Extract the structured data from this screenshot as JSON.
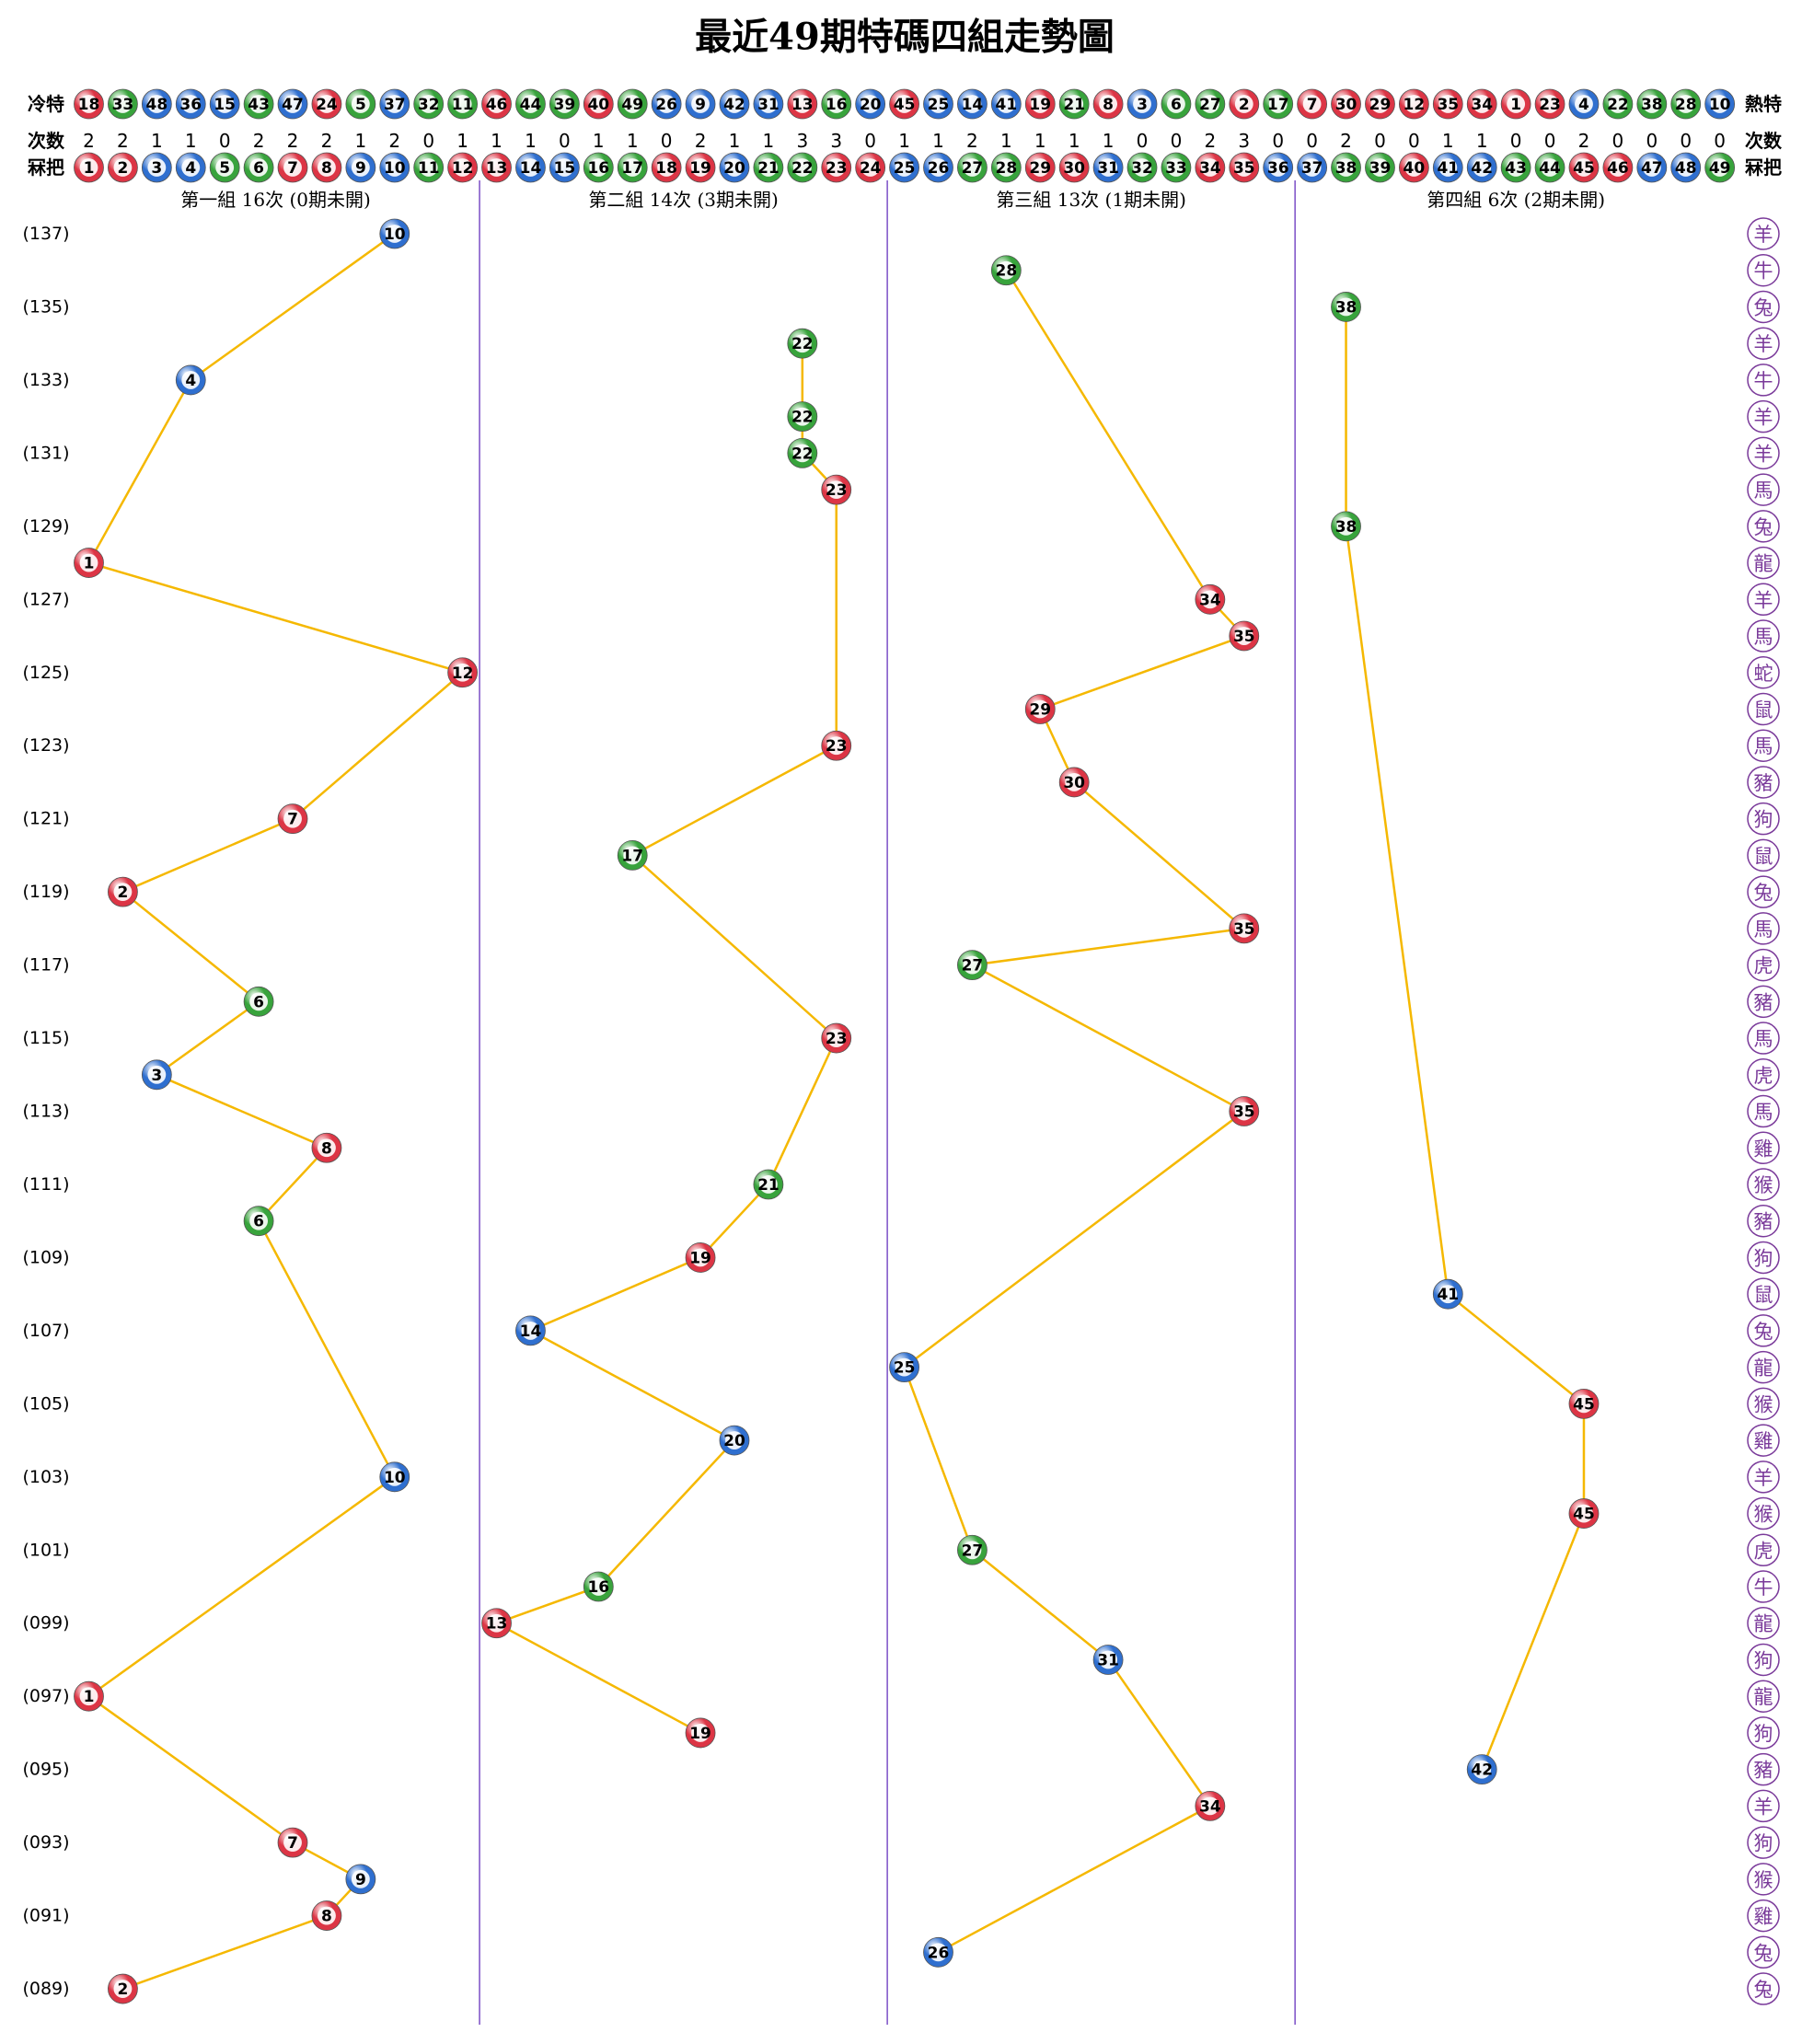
{
  "chart_data": {
    "type": "trend",
    "title": "最近49期特碼四組走勢圖",
    "row_labels_left": [
      "冷特",
      "次数",
      "冧把"
    ],
    "row_labels_right": [
      "熱特",
      "次数",
      "冧把"
    ],
    "cold": [
      18,
      33,
      48,
      36,
      15,
      43,
      47,
      24,
      5,
      37,
      32,
      11,
      46,
      44,
      39,
      40,
      49,
      26,
      9,
      42,
      31,
      13,
      16,
      20,
      45,
      25,
      14,
      41,
      19,
      21,
      8,
      3,
      6,
      27,
      2,
      17,
      7,
      30,
      29,
      12,
      35,
      34,
      1,
      23,
      4,
      22,
      38,
      28,
      10
    ],
    "counts": [
      2,
      2,
      1,
      1,
      0,
      2,
      2,
      2,
      1,
      2,
      0,
      1,
      1,
      1,
      0,
      1,
      1,
      0,
      2,
      1,
      1,
      3,
      3,
      0,
      1,
      1,
      2,
      1,
      1,
      1,
      1,
      0,
      0,
      2,
      3,
      0,
      0,
      2,
      0,
      0,
      1,
      1,
      0,
      0,
      2,
      0,
      0,
      0,
      0
    ],
    "numbers": [
      1,
      2,
      3,
      4,
      5,
      6,
      7,
      8,
      9,
      10,
      11,
      12,
      13,
      14,
      15,
      16,
      17,
      18,
      19,
      20,
      21,
      22,
      23,
      24,
      25,
      26,
      27,
      28,
      29,
      30,
      31,
      32,
      33,
      34,
      35,
      36,
      37,
      38,
      39,
      40,
      41,
      42,
      43,
      44,
      45,
      46,
      47,
      48,
      49
    ],
    "groups": [
      {
        "title": "第一組 16次 (0期未開)",
        "range": [
          1,
          12
        ]
      },
      {
        "title": "第二組 14次 (3期未開)",
        "range": [
          13,
          24
        ]
      },
      {
        "title": "第三組 13次 (1期未開)",
        "range": [
          25,
          36
        ]
      },
      {
        "title": "第四組 6次 (2期未開)",
        "range": [
          37,
          49
        ]
      }
    ],
    "periods": [
      "(137)",
      null,
      "(135)",
      null,
      "(133)",
      null,
      "(131)",
      null,
      "(129)",
      null,
      "(127)",
      null,
      "(125)",
      null,
      "(123)",
      null,
      "(121)",
      null,
      "(119)",
      null,
      "(117)",
      null,
      "(115)",
      null,
      "(113)",
      null,
      "(111)",
      null,
      "(109)",
      null,
      "(107)",
      null,
      "(105)",
      null,
      "(103)",
      null,
      "(101)",
      null,
      "(099)",
      null,
      "(097)",
      null,
      "(095)",
      null,
      "(093)",
      null,
      "(091)",
      null,
      "(089)"
    ],
    "values": [
      10,
      28,
      38,
      22,
      4,
      22,
      22,
      23,
      38,
      1,
      34,
      35,
      12,
      29,
      23,
      30,
      7,
      17,
      2,
      35,
      27,
      6,
      23,
      3,
      35,
      8,
      21,
      6,
      19,
      41,
      14,
      25,
      45,
      20,
      10,
      45,
      27,
      16,
      13,
      31,
      1,
      19,
      42,
      34,
      7,
      9,
      8,
      26,
      2
    ],
    "zodiac": [
      "羊",
      "牛",
      "兔",
      "羊",
      "牛",
      "羊",
      "羊",
      "馬",
      "兔",
      "龍",
      "羊",
      "馬",
      "蛇",
      "鼠",
      "馬",
      "豬",
      "狗",
      "鼠",
      "兔",
      "馬",
      "虎",
      "豬",
      "馬",
      "虎",
      "馬",
      "雞",
      "猴",
      "豬",
      "狗",
      "鼠",
      "兔",
      "龍",
      "猴",
      "雞",
      "羊",
      "猴",
      "虎",
      "牛",
      "龍",
      "狗",
      "龍",
      "狗",
      "豬",
      "羊",
      "狗",
      "猴",
      "雞",
      "兔",
      "兔"
    ],
    "ball_colors": [
      "#dc3545",
      "#dc3545",
      "#2f6fcf",
      "#2f6fcf",
      "#38a33c",
      "#38a33c",
      "#dc3545",
      "#dc3545",
      "#2f6fcf",
      "#2f6fcf",
      "#38a33c",
      "#dc3545",
      "#dc3545",
      "#2f6fcf",
      "#2f6fcf",
      "#38a33c",
      "#38a33c",
      "#dc3545",
      "#dc3545",
      "#2f6fcf",
      "#38a33c",
      "#38a33c",
      "#dc3545",
      "#dc3545",
      "#2f6fcf",
      "#2f6fcf",
      "#38a33c",
      "#38a33c",
      "#dc3545",
      "#dc3545",
      "#2f6fcf",
      "#38a33c",
      "#38a33c",
      "#dc3545",
      "#dc3545",
      "#2f6fcf",
      "#2f6fcf",
      "#38a33c",
      "#38a33c",
      "#dc3545",
      "#2f6fcf",
      "#2f6fcf",
      "#38a33c",
      "#38a33c",
      "#dc3545",
      "#dc3545",
      "#2f6fcf",
      "#2f6fcf",
      "#38a33c"
    ],
    "line_color": "#f5b800",
    "separator_color": "#7b4fc6",
    "zodiac_color": "#7a3a9a"
  }
}
